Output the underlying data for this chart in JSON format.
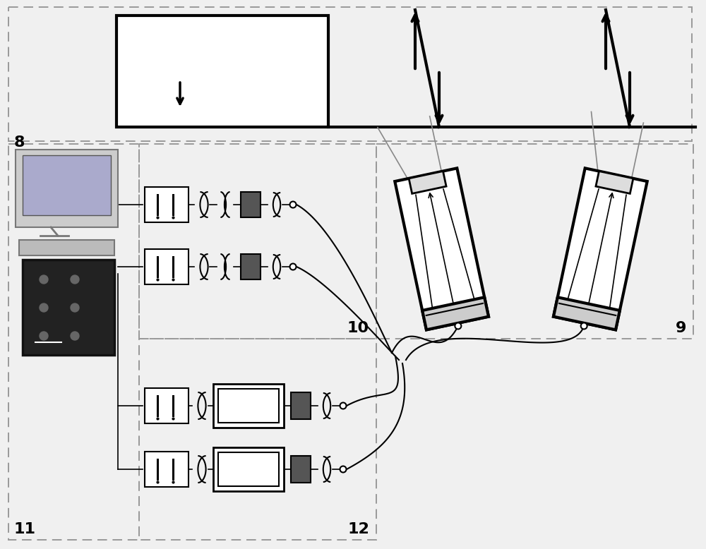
{
  "bg_color": "#f0f0f0",
  "label_8": "8",
  "label_9": "9",
  "label_10": "10",
  "label_11": "11",
  "label_12": "12",
  "font_size_label": 16,
  "dashed_color": "#999999",
  "line_color": "#000000"
}
